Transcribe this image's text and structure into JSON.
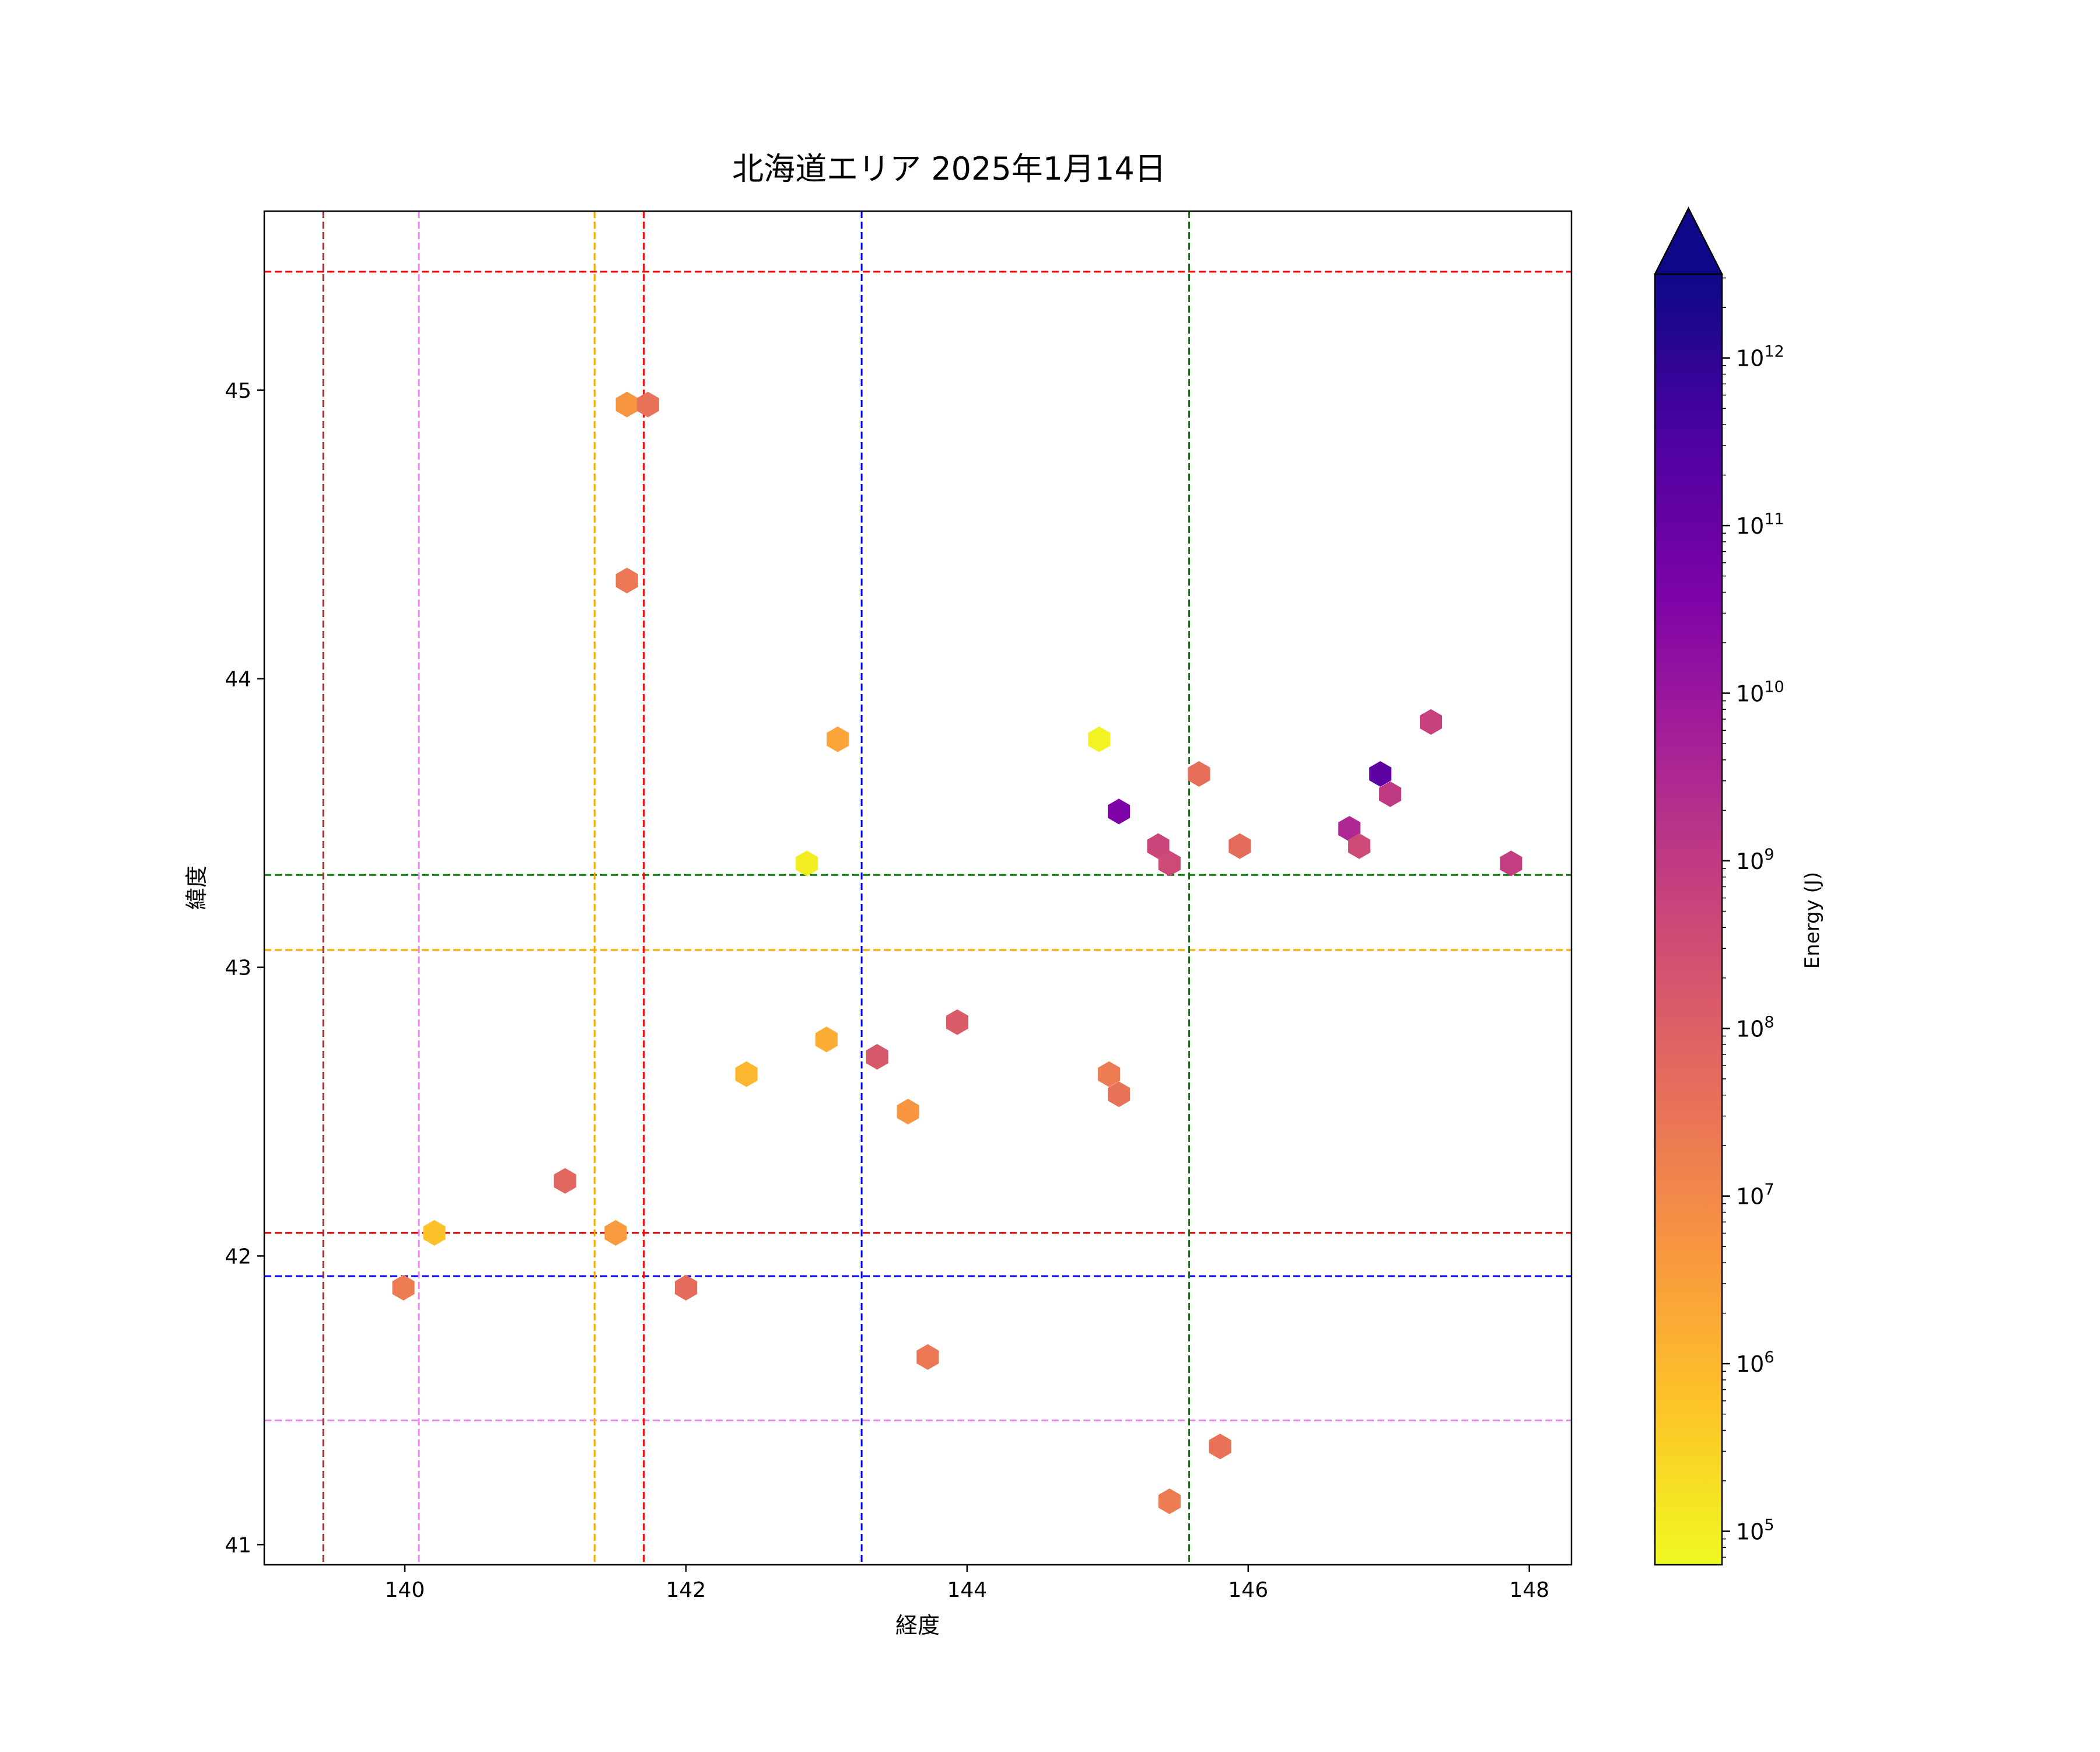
{
  "chart_data": {
    "type": "scatter",
    "marker": "hexagon",
    "title": "北海道エリア 2025年1月14日",
    "xlabel": "経度",
    "ylabel": "緯度",
    "xlim": [
      139.0,
      148.3
    ],
    "ylim": [
      40.93,
      45.62
    ],
    "xticks": [
      140,
      142,
      144,
      146,
      148
    ],
    "yticks": [
      41,
      42,
      43,
      44,
      45
    ],
    "colorbar": {
      "label": "Energy (J)",
      "scale": "log",
      "cmap": "plasma",
      "range_exp": [
        4.8,
        12.5
      ],
      "extend": "max",
      "tick_exponents": [
        5,
        6,
        7,
        8,
        9,
        10,
        11,
        12
      ],
      "tick_base": "10"
    },
    "vlines": [
      {
        "x": 139.42,
        "color": "#a52a2a"
      },
      {
        "x": 140.1,
        "color": "#ee82ee"
      },
      {
        "x": 141.35,
        "color": "#ffa500"
      },
      {
        "x": 141.7,
        "color": "#ff0000"
      },
      {
        "x": 143.25,
        "color": "#0000ff"
      },
      {
        "x": 145.58,
        "color": "#008000"
      }
    ],
    "hlines": [
      {
        "y": 45.41,
        "color": "#ff0000"
      },
      {
        "y": 43.32,
        "color": "#008000"
      },
      {
        "y": 43.06,
        "color": "#ffa500"
      },
      {
        "y": 42.08,
        "color": "#cc0000"
      },
      {
        "y": 41.93,
        "color": "#0000ff"
      },
      {
        "y": 41.43,
        "color": "#ee82ee"
      }
    ],
    "points": [
      {
        "lon": 141.58,
        "lat": 44.95,
        "log_energy": 6.7
      },
      {
        "lon": 141.73,
        "lat": 44.95,
        "log_energy": 7.5
      },
      {
        "lon": 141.58,
        "lat": 44.34,
        "log_energy": 7.4
      },
      {
        "lon": 143.08,
        "lat": 43.79,
        "log_energy": 6.4
      },
      {
        "lon": 142.86,
        "lat": 43.36,
        "log_energy": 5.0
      },
      {
        "lon": 144.94,
        "lat": 43.79,
        "log_energy": 4.9
      },
      {
        "lon": 145.08,
        "lat": 43.54,
        "log_energy": 10.6
      },
      {
        "lon": 145.65,
        "lat": 43.67,
        "log_energy": 7.6
      },
      {
        "lon": 145.36,
        "lat": 43.42,
        "log_energy": 8.7
      },
      {
        "lon": 145.44,
        "lat": 43.36,
        "log_energy": 8.6
      },
      {
        "lon": 145.94,
        "lat": 43.42,
        "log_energy": 7.7
      },
      {
        "lon": 146.94,
        "lat": 43.67,
        "log_energy": 11.2
      },
      {
        "lon": 147.01,
        "lat": 43.6,
        "log_energy": 9.0
      },
      {
        "lon": 146.72,
        "lat": 43.48,
        "log_energy": 9.5
      },
      {
        "lon": 146.79,
        "lat": 43.42,
        "log_energy": 8.6
      },
      {
        "lon": 147.3,
        "lat": 43.85,
        "log_energy": 8.8
      },
      {
        "lon": 147.87,
        "lat": 43.36,
        "log_energy": 8.9
      },
      {
        "lon": 142.43,
        "lat": 42.63,
        "log_energy": 6.0
      },
      {
        "lon": 143.0,
        "lat": 42.75,
        "log_energy": 6.2
      },
      {
        "lon": 143.36,
        "lat": 42.69,
        "log_energy": 8.2
      },
      {
        "lon": 143.93,
        "lat": 42.81,
        "log_energy": 8.1
      },
      {
        "lon": 143.58,
        "lat": 42.5,
        "log_energy": 6.7
      },
      {
        "lon": 145.01,
        "lat": 42.63,
        "log_energy": 7.3
      },
      {
        "lon": 145.08,
        "lat": 42.56,
        "log_energy": 7.5
      },
      {
        "lon": 141.14,
        "lat": 42.26,
        "log_energy": 7.8
      },
      {
        "lon": 140.21,
        "lat": 42.08,
        "log_energy": 5.8
      },
      {
        "lon": 141.5,
        "lat": 42.08,
        "log_energy": 6.6
      },
      {
        "lon": 139.99,
        "lat": 41.89,
        "log_energy": 7.3
      },
      {
        "lon": 142.0,
        "lat": 41.89,
        "log_energy": 7.7
      },
      {
        "lon": 143.72,
        "lat": 41.65,
        "log_energy": 7.4
      },
      {
        "lon": 145.8,
        "lat": 41.34,
        "log_energy": 7.5
      },
      {
        "lon": 145.44,
        "lat": 41.15,
        "log_energy": 7.3
      }
    ]
  }
}
